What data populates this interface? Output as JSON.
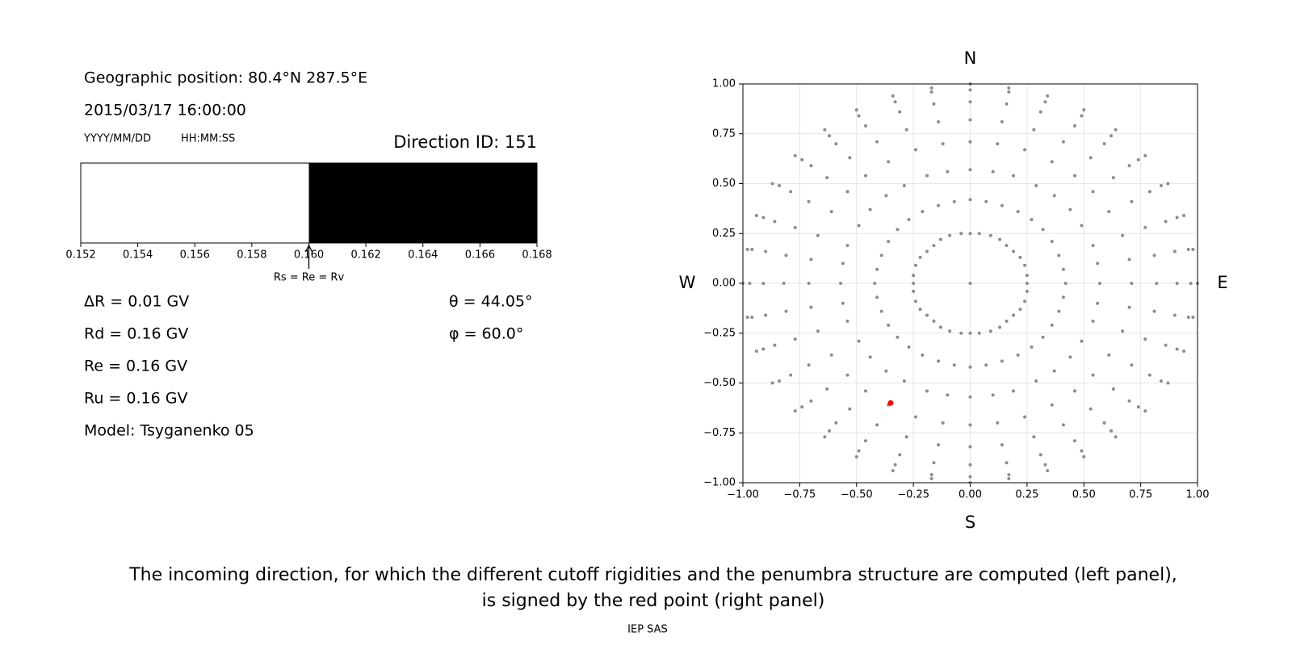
{
  "info": {
    "position": "Geographic position: 80.4°N 287.5°E",
    "datetime": "2015/03/17 16:00:00",
    "date_format": "YYYY/MM/DD",
    "time_format": "HH:MM:SS"
  },
  "parameters": [
    "ΔR = 0.01 GV",
    "Rd = 0.16 GV",
    "Re = 0.16 GV",
    "Ru = 0.16 GV",
    "Model: Tsyganenko 05"
  ],
  "angles": [
    "θ = 44.05°",
    "φ = 60.0°"
  ],
  "caption": [
    "The incoming direction, for which the different cutoff rigidities and the penumbra structure are computed (left panel),",
    "is signed by the red point (right panel)"
  ],
  "footer": "IEP SAS",
  "chart_data": [
    {
      "type": "penumbra",
      "title": "Direction ID: 151",
      "xlim": [
        0.152,
        0.168
      ],
      "xticks": [
        0.152,
        0.154,
        0.156,
        0.158,
        {
          "value": 0.16,
          "label": "0.160"
        },
        0.162,
        0.164,
        0.166,
        0.168
      ],
      "segments": [
        {
          "color": "#ffffff",
          "range": [
            0.152,
            0.16
          ]
        },
        {
          "color": "#000000",
          "range": [
            0.16,
            0.168
          ]
        }
      ],
      "annotation": {
        "text": "Rs = Re = Rv",
        "x": 0.16
      }
    },
    {
      "type": "scatter",
      "grid": true,
      "compass": {
        "north": "N",
        "south": "S",
        "west": "W",
        "east": "E"
      },
      "xlim": [
        -1,
        1
      ],
      "ylim": [
        -1,
        1
      ],
      "xticks": [
        {
          "value": -1,
          "label": "−1.00"
        },
        {
          "value": -0.75,
          "label": "−0.75"
        },
        {
          "value": -0.5,
          "label": "−0.50"
        },
        {
          "value": -0.25,
          "label": "−0.25"
        },
        {
          "value": 0,
          "label": "0.00"
        },
        0.25,
        {
          "value": 0.5,
          "label": "0.50"
        },
        0.75,
        {
          "value": 1,
          "label": "1.00"
        }
      ],
      "yticks": [
        {
          "value": -1,
          "label": "−1.00"
        },
        {
          "value": -0.75,
          "label": "−0.75"
        },
        {
          "value": -0.5,
          "label": "−0.50"
        },
        {
          "value": -0.25,
          "label": "−0.25"
        },
        {
          "value": 0,
          "label": "0.00"
        },
        0.25,
        {
          "value": 0.5,
          "label": "0.50"
        },
        0.75,
        {
          "value": 1,
          "label": "1.00"
        }
      ],
      "series": [
        {
          "color": "#8c8c8c",
          "x": [
            0,
            0,
            0.04,
            0.09,
            0.13,
            0.16,
            0.19,
            0.22,
            0.24,
            0.25,
            0.25,
            0.25,
            0.24,
            0.22,
            0.19,
            0.16,
            0.13,
            0.09,
            0.04,
            0,
            -0.04,
            -0.09,
            -0.13,
            -0.16,
            -0.19,
            -0.22,
            -0.24,
            -0.25,
            -0.25,
            -0.25,
            -0.24,
            -0.22,
            -0.19,
            -0.16,
            -0.13,
            -0.09,
            -0.04,
            0,
            0.07,
            0.14,
            0.21,
            0.27,
            0.32,
            0.36,
            0.39,
            0.41,
            0.42,
            0.41,
            0.39,
            0.36,
            0.32,
            0.27,
            0.21,
            0.14,
            0.07,
            0,
            -0.07,
            -0.14,
            -0.21,
            -0.27,
            -0.32,
            -0.36,
            -0.39,
            -0.41,
            -0.42,
            -0.41,
            -0.39,
            -0.36,
            -0.32,
            -0.27,
            -0.21,
            -0.14,
            -0.07,
            0,
            0.1,
            0.19,
            0.29,
            0.37,
            0.44,
            0.49,
            0.54,
            0.56,
            0.57,
            0.56,
            0.54,
            0.49,
            0.44,
            0.37,
            0.29,
            0.19,
            0.1,
            0,
            -0.1,
            -0.19,
            -0.29,
            -0.37,
            -0.44,
            -0.49,
            -0.54,
            -0.56,
            -0.57,
            -0.56,
            -0.54,
            -0.49,
            -0.44,
            -0.37,
            -0.29,
            -0.19,
            -0.1,
            0,
            0.12,
            0.24,
            0.36,
            0.46,
            0.54,
            0.61,
            0.67,
            0.7,
            0.71,
            0.7,
            0.67,
            0.61,
            0.54,
            0.46,
            0.36,
            0.24,
            0.12,
            0,
            -0.12,
            -0.24,
            -0.36,
            -0.46,
            -0.54,
            -0.61,
            -0.67,
            -0.7,
            -0.71,
            -0.7,
            -0.67,
            -0.61,
            -0.54,
            -0.46,
            -0.36,
            -0.24,
            -0.12,
            0,
            0.14,
            0.28,
            0.41,
            0.53,
            0.63,
            0.71,
            0.77,
            0.81,
            0.82,
            0.81,
            0.77,
            0.71,
            0.63,
            0.53,
            0.41,
            0.28,
            0.14,
            0,
            -0.14,
            -0.28,
            -0.41,
            -0.53,
            -0.63,
            -0.71,
            -0.77,
            -0.81,
            -0.82,
            -0.81,
            -0.77,
            -0.71,
            -0.63,
            -0.53,
            -0.41,
            -0.28,
            -0.14,
            0,
            0.16,
            0.31,
            0.46,
            0.59,
            0.7,
            0.79,
            0.86,
            0.9,
            0.91,
            0.9,
            0.86,
            0.79,
            0.7,
            0.59,
            0.46,
            0.31,
            0.16,
            0,
            -0.16,
            -0.31,
            -0.46,
            -0.59,
            -0.7,
            -0.79,
            -0.86,
            -0.9,
            -0.91,
            -0.9,
            -0.86,
            -0.79,
            -0.7,
            -0.59,
            -0.46,
            -0.31,
            -0.16,
            0,
            0.17,
            0.33,
            0.49,
            0.62,
            0.74,
            0.84,
            0.91,
            0.96,
            0.97,
            0.96,
            0.91,
            0.84,
            0.74,
            0.62,
            0.49,
            0.33,
            0.17,
            0,
            -0.17,
            -0.33,
            -0.49,
            -0.62,
            -0.74,
            -0.84,
            -0.91,
            -0.96,
            -0.97,
            -0.96,
            -0.91,
            -0.84,
            -0.74,
            -0.62,
            -0.49,
            -0.33,
            -0.17,
            0,
            0.17,
            0.34,
            0.5,
            0.64,
            0.77,
            0.87,
            0.94,
            0.98,
            1,
            0.98,
            0.94,
            0.87,
            0.77,
            0.64,
            0.5,
            0.34,
            0.17,
            0,
            -0.17,
            -0.34,
            -0.5,
            -0.64,
            -0.77,
            -0.87,
            -0.94,
            -0.98,
            -1,
            -0.98,
            -0.94,
            -0.87,
            -0.77,
            -0.64,
            -0.5,
            -0.34,
            -0.17
          ],
          "y": [
            0,
            0.25,
            0.25,
            0.24,
            0.22,
            0.19,
            0.16,
            0.13,
            0.09,
            0.04,
            0,
            -0.04,
            -0.09,
            -0.13,
            -0.16,
            -0.19,
            -0.22,
            -0.24,
            -0.25,
            -0.25,
            -0.25,
            -0.24,
            -0.22,
            -0.19,
            -0.16,
            -0.13,
            -0.09,
            -0.04,
            0,
            0.04,
            0.09,
            0.13,
            0.16,
            0.19,
            0.22,
            0.24,
            0.25,
            0.42,
            0.41,
            0.39,
            0.36,
            0.32,
            0.27,
            0.21,
            0.14,
            0.07,
            0,
            -0.07,
            -0.14,
            -0.21,
            -0.27,
            -0.32,
            -0.36,
            -0.39,
            -0.41,
            -0.42,
            -0.41,
            -0.39,
            -0.36,
            -0.32,
            -0.27,
            -0.21,
            -0.14,
            -0.07,
            0,
            0.07,
            0.14,
            0.21,
            0.27,
            0.32,
            0.36,
            0.39,
            0.41,
            0.57,
            0.56,
            0.54,
            0.49,
            0.44,
            0.37,
            0.29,
            0.19,
            0.1,
            0,
            -0.1,
            -0.19,
            -0.29,
            -0.37,
            -0.44,
            -0.49,
            -0.54,
            -0.56,
            -0.57,
            -0.56,
            -0.54,
            -0.49,
            -0.44,
            -0.37,
            -0.29,
            -0.19,
            -0.1,
            0,
            0.1,
            0.19,
            0.29,
            0.37,
            0.44,
            0.49,
            0.54,
            0.56,
            0.71,
            0.7,
            0.67,
            0.61,
            0.54,
            0.46,
            0.36,
            0.24,
            0.12,
            0,
            -0.12,
            -0.24,
            -0.36,
            -0.46,
            -0.54,
            -0.61,
            -0.67,
            -0.7,
            -0.71,
            -0.7,
            -0.67,
            -0.61,
            -0.54,
            -0.46,
            -0.36,
            -0.24,
            -0.12,
            0,
            0.12,
            0.24,
            0.36,
            0.46,
            0.54,
            0.61,
            0.67,
            0.7,
            0.82,
            0.81,
            0.77,
            0.71,
            0.63,
            0.53,
            0.41,
            0.28,
            0.14,
            0,
            -0.14,
            -0.28,
            -0.41,
            -0.53,
            -0.63,
            -0.71,
            -0.77,
            -0.81,
            -0.82,
            -0.81,
            -0.77,
            -0.71,
            -0.63,
            -0.53,
            -0.41,
            -0.28,
            -0.14,
            0,
            0.14,
            0.28,
            0.41,
            0.53,
            0.63,
            0.71,
            0.77,
            0.81,
            0.91,
            0.9,
            0.86,
            0.79,
            0.7,
            0.59,
            0.46,
            0.31,
            0.16,
            0,
            -0.16,
            -0.31,
            -0.46,
            -0.59,
            -0.7,
            -0.79,
            -0.86,
            -0.9,
            -0.91,
            -0.9,
            -0.86,
            -0.79,
            -0.7,
            -0.59,
            -0.46,
            -0.31,
            -0.16,
            0,
            0.16,
            0.31,
            0.46,
            0.59,
            0.7,
            0.79,
            0.86,
            0.9,
            0.97,
            0.96,
            0.91,
            0.84,
            0.74,
            0.62,
            0.49,
            0.33,
            0.17,
            0,
            -0.17,
            -0.33,
            -0.49,
            -0.62,
            -0.74,
            -0.84,
            -0.91,
            -0.96,
            -0.97,
            -0.96,
            -0.91,
            -0.84,
            -0.74,
            -0.62,
            -0.49,
            -0.33,
            -0.17,
            0,
            0.17,
            0.33,
            0.49,
            0.62,
            0.74,
            0.84,
            0.91,
            0.96,
            1,
            0.98,
            0.94,
            0.87,
            0.77,
            0.64,
            0.5,
            0.34,
            0.17,
            0,
            -0.17,
            -0.34,
            -0.5,
            -0.64,
            -0.77,
            -0.87,
            -0.94,
            -0.98,
            -1,
            -0.98,
            -0.94,
            -0.87,
            -0.77,
            -0.64,
            -0.5,
            -0.34,
            -0.17,
            0,
            0.17,
            0.34,
            0.5,
            0.64,
            0.77,
            0.87,
            0.94,
            0.98
          ]
        },
        {
          "color": "#ff0000",
          "x": [
            -0.35
          ],
          "y": [
            -0.6
          ]
        }
      ]
    }
  ]
}
